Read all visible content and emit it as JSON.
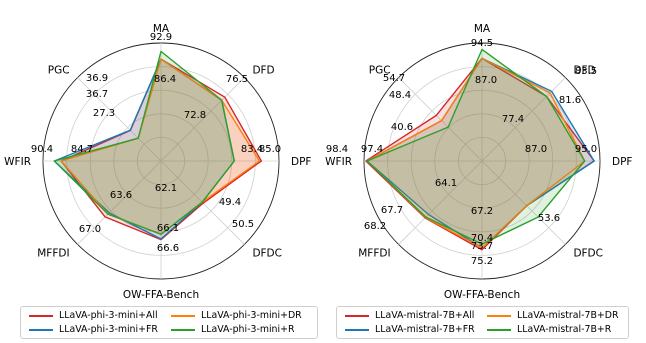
{
  "chart_data": [
    {
      "type": "radar",
      "title": "",
      "xlabel": "OW-FFA-Bench",
      "axes": [
        "MA",
        "DFD",
        "DPF",
        "DFDC",
        "OW-FFA-Bench",
        "MFFDI",
        "WFIR",
        "PGC"
      ],
      "scale": {
        "min": 0,
        "max": 100
      },
      "grid": true,
      "legend_position": "bottom",
      "series": [
        {
          "name": "LLaVA-phi-3-mini+All",
          "color": "#d62728",
          "values": [
            86.4,
            76.5,
            85.0,
            50.5,
            66.6,
            67.0,
            84.7,
            36.7
          ]
        },
        {
          "name": "LLaVA-phi-3-mini+FR",
          "color": "#1f77b4",
          "values": [
            86.4,
            72.8,
            62.1,
            49.4,
            66.1,
            62.1,
            90.4,
            36.9
          ]
        },
        {
          "name": "LLaVA-phi-3-mini+DR",
          "color": "#ff7f0e",
          "values": [
            86.4,
            72.8,
            83.4,
            49.4,
            62.1,
            63.6,
            84.7,
            27.3
          ]
        },
        {
          "name": "LLaVA-phi-3-mini+R",
          "color": "#2ca02c",
          "values": [
            92.9,
            72.8,
            62.1,
            49.4,
            62.1,
            63.6,
            90.4,
            27.3
          ]
        }
      ],
      "point_labels": [
        "92.9",
        "86.4",
        "76.5",
        "72.8",
        "85.0",
        "83.4",
        "49.4",
        "50.5",
        "66.1",
        "66.6",
        "62.1",
        "63.6",
        "67.0",
        "90.4",
        "84.7",
        "36.9",
        "36.7",
        "27.3"
      ]
    },
    {
      "type": "radar",
      "title": "",
      "xlabel": "OW-FFA-Bench",
      "axes": [
        "MA",
        "DFD",
        "DPF",
        "DFDC",
        "OW-FFA-Bench",
        "MFFDI",
        "WFIR",
        "PGC"
      ],
      "scale": {
        "min": 0,
        "max": 100
      },
      "grid": true,
      "legend_position": "bottom",
      "series": [
        {
          "name": "LLaVA-mistral-7B+All",
          "color": "#d62728",
          "values": [
            87.0,
            77.4,
            95.0,
            53.6,
            75.2,
            68.2,
            98.4,
            54.7
          ]
        },
        {
          "name": "LLaVA-mistral-7B+FR",
          "color": "#1f77b4",
          "values": [
            87.0,
            83.5,
            95.0,
            53.6,
            73.7,
            64.1,
            97.4,
            48.4
          ]
        },
        {
          "name": "LLaVA-mistral-7B+DR",
          "color": "#ff7f0e",
          "values": [
            87.0,
            81.6,
            87.0,
            53.6,
            73.7,
            67.7,
            97.4,
            48.4
          ]
        },
        {
          "name": "LLaVA-mistral-7B+R",
          "color": "#2ca02c",
          "values": [
            94.5,
            77.4,
            87.0,
            67.2,
            70.4,
            67.2,
            97.4,
            40.6
          ]
        }
      ],
      "point_labels": [
        "94.5",
        "87.0",
        "83.5",
        "81.6",
        "77.4",
        "95.0",
        "87.0",
        "53.6",
        "73.7",
        "75.2",
        "70.4",
        "67.2",
        "64.1",
        "67.7",
        "68.2",
        "98.4",
        "97.4",
        "54.7",
        "48.4",
        "40.6"
      ]
    }
  ]
}
